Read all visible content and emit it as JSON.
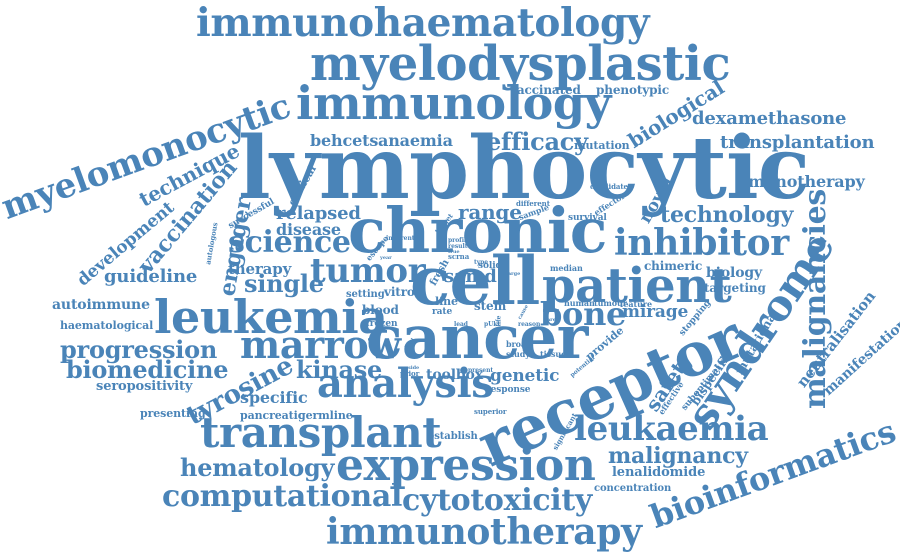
{
  "colors": {
    "word": "#4a84b8",
    "background": "#ffffff"
  },
  "words": [
    {
      "text": "lymphocytic"
    },
    {
      "text": "chronic"
    },
    {
      "text": "cancer"
    },
    {
      "text": "receptor"
    },
    {
      "text": "cell"
    },
    {
      "text": "patient"
    },
    {
      "text": "leukemia"
    },
    {
      "text": "expression"
    },
    {
      "text": "analysis"
    },
    {
      "text": "immunology"
    },
    {
      "text": "myelodysplastic"
    },
    {
      "text": "immunohaematology"
    },
    {
      "text": "transplant"
    },
    {
      "text": "inhibitor"
    },
    {
      "text": "immunotherapy"
    },
    {
      "text": "syndrome"
    },
    {
      "text": "marrow"
    },
    {
      "text": "leukaemia"
    },
    {
      "text": "myelomonocytic"
    },
    {
      "text": "bioinformatics"
    },
    {
      "text": "malignancies"
    },
    {
      "text": "cytotoxicity"
    },
    {
      "text": "computational"
    },
    {
      "text": "tumor"
    },
    {
      "text": "science"
    },
    {
      "text": "bone"
    },
    {
      "text": "progression"
    },
    {
      "text": "biomedicine"
    },
    {
      "text": "hematology"
    },
    {
      "text": "kinase"
    },
    {
      "text": "tyrosine"
    },
    {
      "text": "technology"
    },
    {
      "text": "efficacy"
    },
    {
      "text": "single"
    },
    {
      "text": "malignancy"
    },
    {
      "text": "vaccination"
    },
    {
      "text": "engager"
    },
    {
      "text": "range"
    },
    {
      "text": "safety"
    },
    {
      "text": "relapsed"
    },
    {
      "text": "technique"
    },
    {
      "text": "development"
    },
    {
      "text": "guideline"
    },
    {
      "text": "biological"
    },
    {
      "text": "dexamethasone"
    },
    {
      "text": "transplantation"
    },
    {
      "text": "monotherapy"
    },
    {
      "text": "behcets"
    },
    {
      "text": "anaemia"
    },
    {
      "text": "disease"
    },
    {
      "text": "therapy"
    },
    {
      "text": "samd"
    },
    {
      "text": "genetic"
    },
    {
      "text": "toolbox"
    },
    {
      "text": "specific"
    },
    {
      "text": "mirage"
    },
    {
      "text": "novel"
    },
    {
      "text": "autoimmune"
    },
    {
      "text": "seropositivity"
    },
    {
      "text": "neutralisation"
    },
    {
      "text": "manifestation"
    },
    {
      "text": "biology"
    },
    {
      "text": "targeting"
    },
    {
      "text": "chimeric"
    },
    {
      "text": "bispecific"
    },
    {
      "text": "mutational"
    },
    {
      "text": "lenalidomide"
    },
    {
      "text": "concentration"
    },
    {
      "text": "establish"
    },
    {
      "text": "pancreatic"
    },
    {
      "text": "germline"
    },
    {
      "text": "presenting"
    },
    {
      "text": "haematological"
    },
    {
      "text": "vaccinated"
    },
    {
      "text": "phenotypic"
    },
    {
      "text": "mutation"
    },
    {
      "text": "provide"
    },
    {
      "text": "suboptimal"
    },
    {
      "text": "stopping"
    },
    {
      "text": "effective"
    },
    {
      "text": "clinical"
    },
    {
      "text": "successful"
    },
    {
      "text": "autologous"
    },
    {
      "text": "candidate"
    },
    {
      "text": "different"
    },
    {
      "text": "effector"
    },
    {
      "text": "survival"
    },
    {
      "text": "sample"
    },
    {
      "text": "target"
    },
    {
      "text": "escape"
    },
    {
      "text": "median"
    },
    {
      "text": "human"
    },
    {
      "text": "tumour"
    },
    {
      "text": "feature"
    },
    {
      "text": "setting"
    },
    {
      "text": "vitro"
    },
    {
      "text": "blood"
    },
    {
      "text": "frozen"
    },
    {
      "text": "line"
    },
    {
      "text": "rate"
    },
    {
      "text": "stem"
    },
    {
      "text": "fresh"
    },
    {
      "text": "solid"
    },
    {
      "text": "broad"
    },
    {
      "text": "study"
    },
    {
      "text": "tissue"
    },
    {
      "text": "present"
    },
    {
      "text": "prior"
    },
    {
      "text": "response"
    },
    {
      "text": "superior"
    },
    {
      "text": "significant"
    },
    {
      "text": "inherent"
    },
    {
      "text": "lead"
    },
    {
      "text": "pUkt"
    },
    {
      "text": "reason"
    },
    {
      "text": "potential"
    },
    {
      "text": "scrna"
    },
    {
      "text": "profile"
    },
    {
      "text": "result"
    },
    {
      "text": "true"
    },
    {
      "text": "type"
    },
    {
      "text": "life"
    },
    {
      "text": "final"
    },
    {
      "text": "year"
    },
    {
      "text": "side"
    },
    {
      "text": "large"
    },
    {
      "text": "cause"
    },
    {
      "text": "care"
    }
  ]
}
